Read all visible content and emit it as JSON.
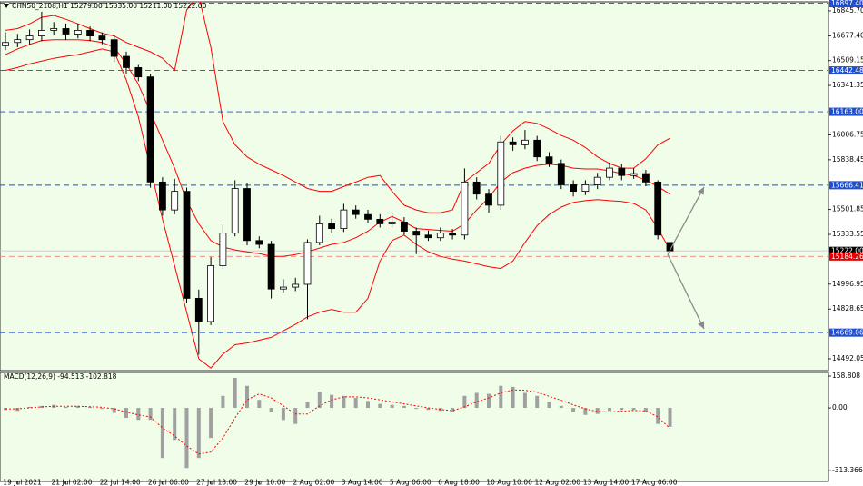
{
  "chart_data": [
    {
      "type": "candlestick",
      "title": "CHN50_2108,H1  15279.00 15335.00 15211.00 15222.00",
      "categories": [
        null,
        "19 Jul 2021",
        null,
        null,
        null,
        "21 Jul 02:00",
        null,
        null,
        null,
        "22 Jul 14:00",
        null,
        null,
        null,
        "26 Jul 06:00",
        null,
        null,
        null,
        "27 Jul 18:00",
        null,
        null,
        null,
        "29 Jul 10:00",
        null,
        null,
        null,
        "2 Aug 02:00",
        null,
        null,
        null,
        "3 Aug 14:00",
        null,
        null,
        null,
        "5 Aug 06:00",
        null,
        null,
        null,
        "6 Aug 18:00",
        null,
        null,
        null,
        "10 Aug 10:00",
        null,
        null,
        null,
        "12 Aug 02:00",
        null,
        null,
        null,
        "13 Aug 14:00",
        null,
        null,
        null,
        "17 Aug 06:00",
        null,
        null
      ],
      "open": [
        16610,
        16632,
        16651,
        16676,
        16714,
        16726,
        16689,
        16714,
        16676,
        16651,
        16538,
        16462,
        16399,
        15688,
        15499,
        15625,
        14901,
        14744,
        15122,
        15342,
        15644,
        15292,
        15266,
        14964,
        14977,
        14996,
        15279,
        15405,
        15373,
        15499,
        15468,
        15436,
        15405,
        15417,
        15355,
        15329,
        15311,
        15342,
        15329,
        15688,
        15606,
        15531,
        15959,
        15940,
        15971,
        15858,
        15814,
        15669,
        15625,
        15669,
        15720,
        15782,
        15732,
        15745,
        15688,
        15279
      ],
      "high": [
        16700,
        16690,
        16720,
        16840,
        16770,
        16760,
        16760,
        16740,
        16700,
        16680,
        16570,
        16480,
        16420,
        15720,
        15710,
        15650,
        14960,
        15180,
        15400,
        15700,
        15680,
        15320,
        15290,
        15030,
        15040,
        15300,
        15460,
        15440,
        15540,
        15530,
        15500,
        15470,
        15480,
        15450,
        15380,
        15360,
        15380,
        15370,
        15780,
        15720,
        15640,
        16000,
        15990,
        16040,
        16000,
        15890,
        15840,
        15700,
        15700,
        15750,
        15820,
        15810,
        15780,
        15770,
        15700,
        15335
      ],
      "low": [
        16580,
        16600,
        16620,
        16640,
        16680,
        16650,
        16660,
        16640,
        16620,
        16500,
        16420,
        16370,
        15650,
        15460,
        15470,
        14870,
        14520,
        14720,
        15100,
        15320,
        15260,
        15240,
        14900,
        14940,
        14950,
        14760,
        15260,
        15340,
        15350,
        15440,
        15410,
        15380,
        15380,
        15330,
        15200,
        15290,
        15290,
        15300,
        15300,
        15570,
        15480,
        15500,
        15900,
        15910,
        15830,
        15790,
        15640,
        15590,
        15600,
        15640,
        15700,
        15700,
        15710,
        15660,
        15300,
        15211
      ],
      "close": [
        16632,
        16651,
        16676,
        16714,
        16726,
        16689,
        16714,
        16676,
        16651,
        16538,
        16462,
        16399,
        15688,
        15499,
        15625,
        14901,
        14744,
        15122,
        15342,
        15644,
        15292,
        15266,
        14964,
        14977,
        14996,
        15279,
        15405,
        15373,
        15499,
        15468,
        15436,
        15405,
        15417,
        15355,
        15329,
        15311,
        15342,
        15329,
        15688,
        15606,
        15531,
        15959,
        15940,
        15971,
        15858,
        15814,
        15669,
        15625,
        15669,
        15720,
        15782,
        15732,
        15745,
        15688,
        15329,
        15222
      ],
      "up_color": "#ffffff",
      "down_color": "#000000",
      "bands": {
        "color": "#ff0000",
        "upper": [
          16714,
          16726,
          16758,
          16802,
          16815,
          16789,
          16758,
          16726,
          16695,
          16676,
          16632,
          16600,
          16569,
          16525,
          16443,
          16852,
          16947,
          16600,
          16097,
          15940,
          15858,
          15808,
          15770,
          15732,
          15688,
          15644,
          15625,
          15625,
          15657,
          15688,
          15720,
          15732,
          15625,
          15531,
          15499,
          15480,
          15480,
          15499,
          15688,
          15751,
          15814,
          15940,
          16034,
          16097,
          16085,
          16047,
          16003,
          15971,
          15921,
          15858,
          15814,
          15782,
          15782,
          15845,
          15940,
          15984
        ],
        "middle": [
          16550,
          16588,
          16619,
          16645,
          16651,
          16651,
          16651,
          16645,
          16632,
          16600,
          16487,
          16349,
          16160,
          15971,
          15782,
          15562,
          15405,
          15292,
          15248,
          15229,
          15216,
          15204,
          15185,
          15185,
          15197,
          15216,
          15241,
          15266,
          15279,
          15311,
          15355,
          15417,
          15455,
          15417,
          15373,
          15367,
          15361,
          15355,
          15405,
          15499,
          15581,
          15688,
          15751,
          15782,
          15801,
          15808,
          15801,
          15782,
          15776,
          15776,
          15764,
          15745,
          15732,
          15701,
          15657,
          15606
        ],
        "lower": [
          16443,
          16462,
          16487,
          16506,
          16525,
          16538,
          16550,
          16569,
          16588,
          16569,
          16380,
          16129,
          15782,
          15436,
          15122,
          14807,
          14492,
          14429,
          14524,
          14587,
          14599,
          14618,
          14637,
          14681,
          14725,
          14776,
          14807,
          14826,
          14807,
          14807,
          14901,
          15153,
          15292,
          15329,
          15266,
          15216,
          15185,
          15166,
          15153,
          15134,
          15115,
          15103,
          15153,
          15279,
          15392,
          15468,
          15518,
          15550,
          15562,
          15569,
          15562,
          15556,
          15543,
          15499,
          15373,
          15229
        ]
      },
      "levels": [
        {
          "value": 16897.4,
          "label": "16897.40",
          "color": "#1f4fd1",
          "style": "dashed"
        },
        {
          "value": 16442.48,
          "label": "16442.48",
          "color": "#1f4fd1",
          "style": "dashed"
        },
        {
          "value": 16163,
          "label": "16163.00",
          "color": "#1f4fd1",
          "style": "dashed"
        },
        {
          "value": 15666.41,
          "label": "15666.41",
          "color": "#1f4fd1",
          "style": "dashed"
        },
        {
          "value": 14669.06,
          "label": "14669.06",
          "color": "#1f4fd1",
          "style": "dashed"
        },
        {
          "value": 15222,
          "label": "15222.00",
          "color": "#000000",
          "line_color": "#c8c8c8",
          "style": "solid"
        },
        {
          "value": 15184.26,
          "label": "15184.26",
          "color": "#e00000",
          "line_color": "#f08080",
          "style": "dashed"
        }
      ],
      "ylim": [
        14412,
        16907
      ],
      "yticks": [
        {
          "value": 16845.7,
          "label": "16845.70"
        },
        {
          "value": 16677.4,
          "label": "16677.40"
        },
        16509.15,
        16341.35,
        16006.75,
        15838.45,
        15501.85,
        15333.55,
        14996.95,
        14828.65,
        14492.05
      ]
    },
    {
      "type": "macd",
      "title": "MACD(12,26,9) -94.513 -102.818",
      "values": [
        -10,
        -15,
        5,
        10,
        15,
        5,
        10,
        5,
        -5,
        -25,
        -50,
        -60,
        -60,
        -250,
        -160,
        -300,
        -250,
        -150,
        60,
        150,
        110,
        40,
        -20,
        -60,
        -80,
        30,
        80,
        65,
        60,
        50,
        35,
        20,
        15,
        10,
        -5,
        -10,
        -15,
        -20,
        60,
        75,
        70,
        110,
        105,
        75,
        60,
        30,
        10,
        -20,
        -35,
        -30,
        -15,
        -10,
        -10,
        -20,
        -80,
        -94.513
      ],
      "signal": [
        -5,
        -5,
        0,
        5,
        8,
        8,
        8,
        6,
        3,
        -5,
        -20,
        -35,
        -45,
        -100,
        -140,
        -190,
        -230,
        -220,
        -150,
        -50,
        40,
        70,
        50,
        10,
        -30,
        -30,
        10,
        40,
        55,
        55,
        50,
        40,
        30,
        20,
        10,
        0,
        -8,
        -14,
        5,
        30,
        50,
        75,
        90,
        88,
        78,
        58,
        38,
        15,
        -5,
        -18,
        -20,
        -16,
        -13,
        -15,
        -45,
        -102.818
      ],
      "color": "#a0a0a0",
      "signal_color": "#ff0000",
      "ylim": [
        -367,
        177
      ],
      "yticks": [
        158.808,
        {
          "value": 0,
          "label": "0.00"
        },
        -313.366
      ]
    }
  ]
}
